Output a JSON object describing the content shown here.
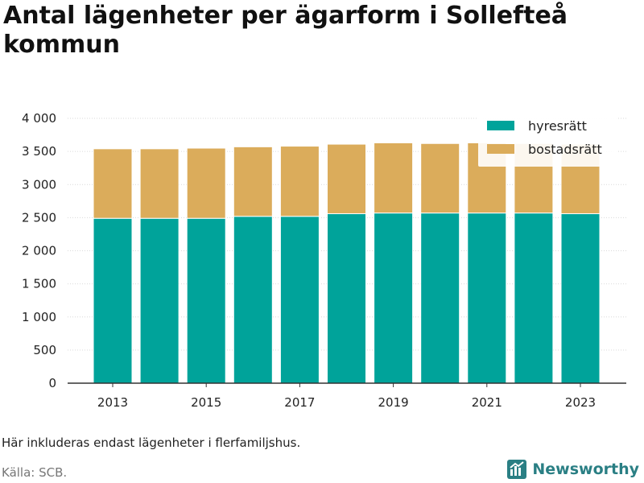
{
  "title": "Antal lägenheter per ägarform i Sollefteå kommun",
  "note": "Här inkluderas endast lägenheter i flerfamiljshus.",
  "source": "Källa: SCB.",
  "brand": {
    "name": "Newsworthy",
    "color": "#2a7f84"
  },
  "chart_data": {
    "type": "bar",
    "stacked": true,
    "x": [
      2013,
      2014,
      2015,
      2016,
      2017,
      2018,
      2019,
      2020,
      2021,
      2022,
      2023
    ],
    "x_tick_labels": [
      "2013",
      "2015",
      "2017",
      "2019",
      "2021",
      "2023"
    ],
    "series": [
      {
        "name": "hyresrätt",
        "color": "#00a39a",
        "values": [
          2490,
          2490,
          2490,
          2520,
          2520,
          2560,
          2570,
          2570,
          2570,
          2570,
          2560
        ]
      },
      {
        "name": "bostadsrätt",
        "color": "#dbac5b",
        "values": [
          1050,
          1050,
          1060,
          1050,
          1060,
          1050,
          1060,
          1050,
          1060,
          1050,
          1050
        ]
      }
    ],
    "ylim": [
      0,
      4000
    ],
    "y_ticks": [
      0,
      500,
      1000,
      1500,
      2000,
      2500,
      3000,
      3500,
      4000
    ],
    "y_tick_labels": [
      "0",
      "500",
      "1 000",
      "1 500",
      "2 000",
      "2 500",
      "3 000",
      "3 500",
      "4 000"
    ],
    "grid": true,
    "legend": "top-right"
  }
}
